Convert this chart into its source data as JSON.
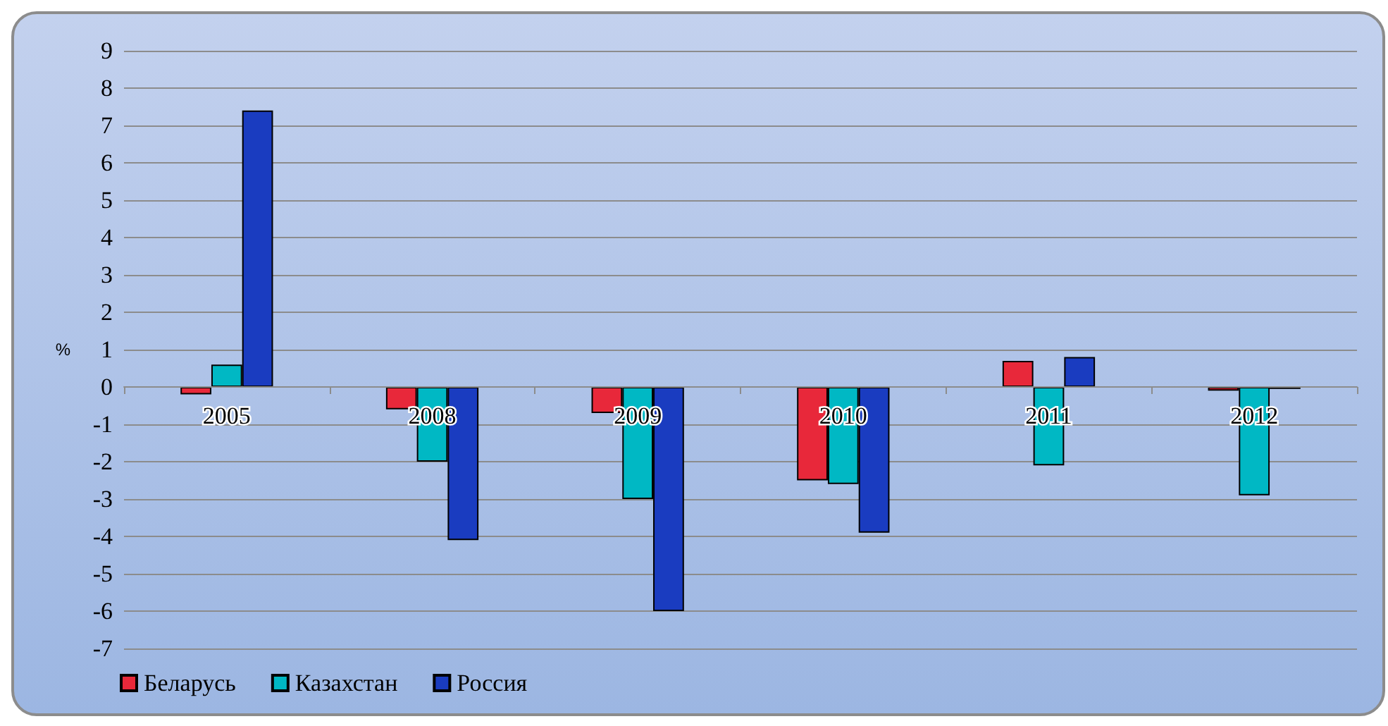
{
  "chart_data": {
    "type": "bar",
    "ylabel": "%",
    "categories": [
      "2005",
      "2008",
      "2009",
      "2010",
      "2011",
      "2012"
    ],
    "series": [
      {
        "name": "Беларусь",
        "color": "#e8283a",
        "values": [
          -0.2,
          -0.6,
          -0.7,
          -2.5,
          0.7,
          -0.1
        ]
      },
      {
        "name": "Казахстан",
        "color": "#00b8c4",
        "values": [
          0.6,
          -2.0,
          -3.0,
          -2.6,
          -2.1,
          -2.9
        ]
      },
      {
        "name": "Россия",
        "color": "#1a3cc0",
        "values": [
          7.4,
          -4.1,
          -6.0,
          -3.9,
          0.8,
          -0.05
        ]
      }
    ],
    "ylim": [
      -7,
      9
    ],
    "yticks": [
      -7,
      -6,
      -5,
      -4,
      -3,
      -2,
      -1,
      0,
      1,
      2,
      3,
      4,
      5,
      6,
      7,
      8,
      9
    ],
    "grid": "y",
    "legend": "bottom left"
  }
}
